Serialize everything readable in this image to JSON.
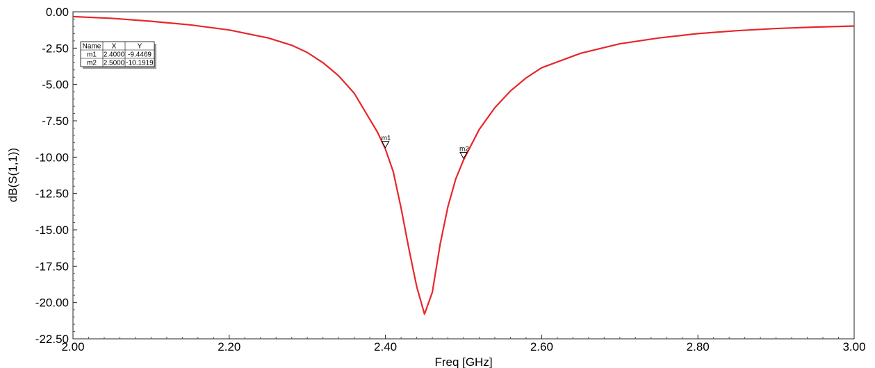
{
  "chart_data": {
    "type": "line",
    "xlabel": "Freq [GHz]",
    "ylabel": "dB(S(1,1))",
    "xlim": [
      2.0,
      3.0
    ],
    "ylim": [
      -22.5,
      0.0
    ],
    "x_ticks": [
      "2.00",
      "2.20",
      "2.40",
      "2.60",
      "2.80",
      "3.00"
    ],
    "y_ticks": [
      "0.00",
      "-2.50",
      "-5.00",
      "-7.50",
      "-10.00",
      "-12.50",
      "-15.00",
      "-17.50",
      "-20.00",
      "-22.50"
    ],
    "grid": false,
    "line_color": "#e8262b",
    "series": [
      {
        "x": [
          2.0,
          2.05,
          2.1,
          2.15,
          2.2,
          2.25,
          2.28,
          2.3,
          2.32,
          2.34,
          2.36,
          2.38,
          2.39,
          2.4,
          2.41,
          2.42,
          2.43,
          2.44,
          2.45,
          2.46,
          2.47,
          2.48,
          2.49,
          2.5,
          2.52,
          2.54,
          2.56,
          2.58,
          2.6,
          2.65,
          2.7,
          2.75,
          2.8,
          2.85,
          2.9,
          2.95,
          3.0
        ],
        "y": [
          -0.33,
          -0.45,
          -0.65,
          -0.9,
          -1.25,
          -1.8,
          -2.3,
          -2.8,
          -3.5,
          -4.4,
          -5.6,
          -7.4,
          -8.3,
          -9.45,
          -11.0,
          -13.5,
          -16.3,
          -18.9,
          -20.8,
          -19.3,
          -16.0,
          -13.4,
          -11.5,
          -10.19,
          -8.1,
          -6.6,
          -5.45,
          -4.55,
          -3.85,
          -2.85,
          -2.2,
          -1.8,
          -1.5,
          -1.3,
          -1.15,
          -1.05,
          -0.98
        ]
      }
    ],
    "markers": [
      {
        "label": "m1",
        "x": 2.4,
        "y": -9.4469
      },
      {
        "label": "m2",
        "x": 2.5,
        "y": -10.1919
      }
    ],
    "marker_table": {
      "headers": [
        "Name",
        "X",
        "Y"
      ],
      "rows": [
        [
          "m1",
          "2.4000",
          "-9.4469"
        ],
        [
          "m2",
          "2.5000",
          "-10.1919"
        ]
      ]
    }
  }
}
